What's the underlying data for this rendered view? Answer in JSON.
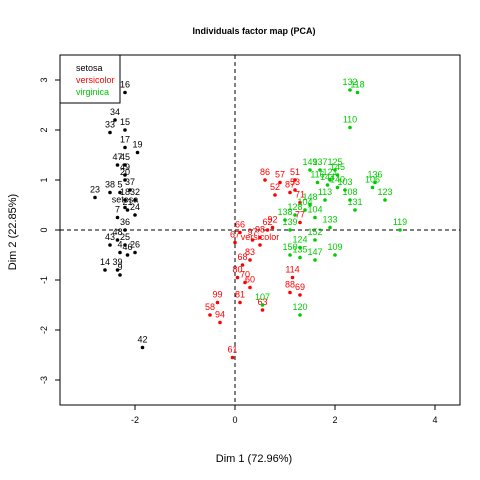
{
  "chart_data": {
    "type": "scatter",
    "title": "Individuals factor map (PCA)",
    "xlabel": "Dim 1 (72.96%)",
    "ylabel": "Dim 2 (22.85%)",
    "xlim": [
      -3.5,
      4.5
    ],
    "ylim": [
      -3.5,
      3.5
    ],
    "xticks": [
      -2,
      0,
      2,
      4
    ],
    "yticks": [
      -3,
      -2,
      -1,
      0,
      1,
      2,
      3
    ],
    "reference_lines": {
      "x": 0,
      "y": 0,
      "style": "dashed"
    },
    "legend": {
      "placement": "top-left"
    },
    "series": [
      {
        "name": "setosa",
        "color": "#000000",
        "points": [
          {
            "x": -2.2,
            "y": 2.75,
            "label": "16"
          },
          {
            "x": -2.4,
            "y": 2.2,
            "label": "34"
          },
          {
            "x": -2.2,
            "y": 2.0,
            "label": "15"
          },
          {
            "x": -2.5,
            "y": 1.95,
            "label": "33"
          },
          {
            "x": -2.2,
            "y": 1.65,
            "label": "17"
          },
          {
            "x": -1.95,
            "y": 1.55,
            "label": "19"
          },
          {
            "x": -2.35,
            "y": 1.3,
            "label": "47"
          },
          {
            "x": -2.2,
            "y": 1.3,
            "label": "45"
          },
          {
            "x": -2.2,
            "y": 1.1,
            "label": "49"
          },
          {
            "x": -2.2,
            "y": 1.0,
            "label": "20"
          },
          {
            "x": -2.3,
            "y": 0.75,
            "label": "5"
          },
          {
            "x": -2.1,
            "y": 0.8,
            "label": "37"
          },
          {
            "x": -2.5,
            "y": 0.75,
            "label": "38"
          },
          {
            "x": -2.8,
            "y": 0.65,
            "label": "23"
          },
          {
            "x": -2.2,
            "y": 0.6,
            "label": "18"
          },
          {
            "x": -2.0,
            "y": 0.6,
            "label": "32"
          },
          {
            "x": -2.15,
            "y": 0.4,
            "label": "21"
          },
          {
            "x": -2.0,
            "y": 0.3,
            "label": "24"
          },
          {
            "x": -2.35,
            "y": 0.25,
            "label": "7"
          },
          {
            "x": -2.2,
            "y": 0.45,
            "label": "setosa"
          },
          {
            "x": -2.2,
            "y": 0.0,
            "label": "36"
          },
          {
            "x": -2.35,
            "y": -0.2,
            "label": "48"
          },
          {
            "x": -2.5,
            "y": -0.3,
            "label": "43"
          },
          {
            "x": -2.2,
            "y": -0.3,
            "label": "25"
          },
          {
            "x": -2.3,
            "y": -0.45,
            "label": "4"
          },
          {
            "x": -2.0,
            "y": -0.45,
            "label": "26"
          },
          {
            "x": -2.15,
            "y": -0.5,
            "label": "46"
          },
          {
            "x": -2.6,
            "y": -0.8,
            "label": "14"
          },
          {
            "x": -2.35,
            "y": -0.8,
            "label": "39"
          },
          {
            "x": -2.3,
            "y": -0.9,
            "label": "9"
          },
          {
            "x": -1.85,
            "y": -2.35,
            "label": "42"
          }
        ]
      },
      {
        "name": "versicolor",
        "color": "#ff0000",
        "points": [
          {
            "x": 0.6,
            "y": 1.0,
            "label": "86"
          },
          {
            "x": 0.9,
            "y": 0.95,
            "label": "57"
          },
          {
            "x": 1.2,
            "y": 1.0,
            "label": "51"
          },
          {
            "x": 0.8,
            "y": 0.7,
            "label": "52"
          },
          {
            "x": 1.1,
            "y": 0.75,
            "label": "87"
          },
          {
            "x": 1.2,
            "y": 0.8,
            "label": "53"
          },
          {
            "x": 1.3,
            "y": 0.55,
            "label": "71"
          },
          {
            "x": 1.3,
            "y": 0.15,
            "label": "77"
          },
          {
            "x": 0.75,
            "y": 0.05,
            "label": "92"
          },
          {
            "x": 0.65,
            "y": 0.0,
            "label": "62"
          },
          {
            "x": 0.1,
            "y": -0.05,
            "label": "66"
          },
          {
            "x": 0.5,
            "y": -0.15,
            "label": "98"
          },
          {
            "x": 0.35,
            "y": -0.2,
            "label": "97"
          },
          {
            "x": 0.5,
            "y": -0.3,
            "label": "versicolor"
          },
          {
            "x": 0.0,
            "y": -0.25,
            "label": "67"
          },
          {
            "x": 0.3,
            "y": -0.6,
            "label": "83"
          },
          {
            "x": 0.15,
            "y": -0.7,
            "label": "68"
          },
          {
            "x": 0.05,
            "y": -0.95,
            "label": "80"
          },
          {
            "x": 0.2,
            "y": -1.05,
            "label": "70"
          },
          {
            "x": 0.3,
            "y": -1.15,
            "label": "60"
          },
          {
            "x": 1.1,
            "y": -1.25,
            "label": "88"
          },
          {
            "x": 1.3,
            "y": -1.3,
            "label": "69"
          },
          {
            "x": 1.15,
            "y": -0.95,
            "label": "114"
          },
          {
            "x": 0.1,
            "y": -1.45,
            "label": "81"
          },
          {
            "x": -0.35,
            "y": -1.45,
            "label": "99"
          },
          {
            "x": -0.5,
            "y": -1.7,
            "label": "58"
          },
          {
            "x": -0.3,
            "y": -1.85,
            "label": "94"
          },
          {
            "x": 0.55,
            "y": -1.6,
            "label": "63"
          },
          {
            "x": -0.05,
            "y": -2.55,
            "label": "61"
          }
        ]
      },
      {
        "name": "virginica",
        "color": "#00cc00",
        "points": [
          {
            "x": 2.3,
            "y": 2.8,
            "label": "132"
          },
          {
            "x": 2.45,
            "y": 2.75,
            "label": "118"
          },
          {
            "x": 2.3,
            "y": 2.05,
            "label": "110"
          },
          {
            "x": 1.5,
            "y": 1.2,
            "label": "149"
          },
          {
            "x": 1.7,
            "y": 1.2,
            "label": "137"
          },
          {
            "x": 2.0,
            "y": 1.2,
            "label": "125"
          },
          {
            "x": 2.05,
            "y": 1.1,
            "label": "145"
          },
          {
            "x": 1.9,
            "y": 1.0,
            "label": "121"
          },
          {
            "x": 1.65,
            "y": 0.95,
            "label": "116"
          },
          {
            "x": 1.85,
            "y": 0.9,
            "label": "144"
          },
          {
            "x": 2.05,
            "y": 0.85,
            "label": "140"
          },
          {
            "x": 2.2,
            "y": 0.8,
            "label": "103"
          },
          {
            "x": 2.8,
            "y": 0.95,
            "label": "136"
          },
          {
            "x": 2.75,
            "y": 0.85,
            "label": "106"
          },
          {
            "x": 3.0,
            "y": 0.6,
            "label": "123"
          },
          {
            "x": 2.3,
            "y": 0.6,
            "label": "108"
          },
          {
            "x": 2.4,
            "y": 0.4,
            "label": "131"
          },
          {
            "x": 1.8,
            "y": 0.6,
            "label": "113"
          },
          {
            "x": 1.5,
            "y": 0.5,
            "label": "148"
          },
          {
            "x": 1.4,
            "y": 0.4,
            "label": "104"
          },
          {
            "x": 1.6,
            "y": 0.25,
            "label": "104"
          },
          {
            "x": 1.2,
            "y": 0.3,
            "label": "128"
          },
          {
            "x": 1.0,
            "y": 0.2,
            "label": "138"
          },
          {
            "x": 1.1,
            "y": 0.0,
            "label": "139"
          },
          {
            "x": 1.9,
            "y": 0.05,
            "label": "133"
          },
          {
            "x": 1.6,
            "y": -0.2,
            "label": "152"
          },
          {
            "x": 1.3,
            "y": -0.35,
            "label": "124"
          },
          {
            "x": 1.1,
            "y": -0.5,
            "label": "150"
          },
          {
            "x": 1.3,
            "y": -0.55,
            "label": "135"
          },
          {
            "x": 1.6,
            "y": -0.6,
            "label": "147"
          },
          {
            "x": 2.0,
            "y": -0.5,
            "label": "109"
          },
          {
            "x": 3.3,
            "y": 0.0,
            "label": "119"
          },
          {
            "x": 0.55,
            "y": -1.5,
            "label": "107"
          },
          {
            "x": 1.3,
            "y": -1.7,
            "label": "120"
          }
        ]
      }
    ]
  }
}
